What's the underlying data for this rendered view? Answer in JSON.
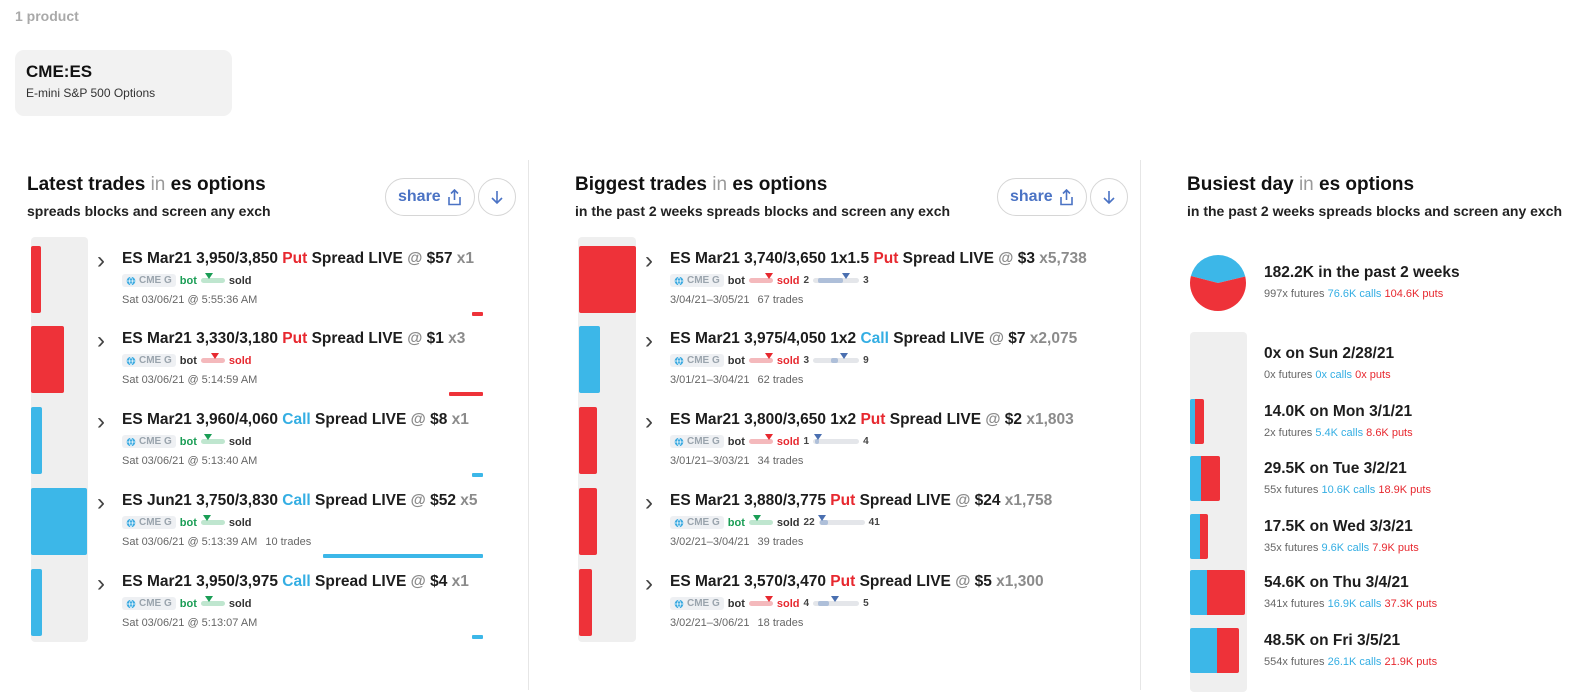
{
  "header": {
    "product_count": "1 product"
  },
  "product": {
    "code": "CME:ES",
    "name": "E-mini S&P 500 Options"
  },
  "colors": {
    "put": "#ee3239",
    "call": "#3cb7e8",
    "bot": "#1a9d55"
  },
  "latest": {
    "title": "Latest trades",
    "in": "in",
    "market": "es options",
    "subtitle": "spreads blocks and screen any exch",
    "share_label": "share",
    "rows": [
      {
        "pre": "ES Mar21 3,950/3,850 ",
        "type": "Put",
        "post": " Spread LIVE",
        "at": " @ ",
        "price": "$57",
        "x": " x1",
        "exch": "CME G",
        "bot": "bot",
        "sold": "sold",
        "time": "Sat 03/06/21 @ 5:55:36 AM",
        "extra": ""
      },
      {
        "pre": "ES Mar21 3,330/3,180 ",
        "type": "Put",
        "post": " Spread LIVE",
        "at": " @ ",
        "price": "$1",
        "x": " x3",
        "exch": "CME G",
        "bot": "bot",
        "sold": "sold",
        "time": "Sat 03/06/21 @ 5:14:59 AM",
        "extra": ""
      },
      {
        "pre": "ES Mar21 3,960/4,060 ",
        "type": "Call",
        "post": " Spread LIVE",
        "at": " @ ",
        "price": "$8",
        "x": " x1",
        "exch": "CME G",
        "bot": "bot",
        "sold": "sold",
        "time": "Sat 03/06/21 @ 5:13:40 AM",
        "extra": ""
      },
      {
        "pre": "ES Jun21 3,750/3,830 ",
        "type": "Call",
        "post": " Spread LIVE",
        "at": " @ ",
        "price": "$52",
        "x": " x5",
        "exch": "CME G",
        "bot": "bot",
        "sold": "sold",
        "time": "Sat 03/06/21 @ 5:13:39 AM",
        "extra": "10 trades"
      },
      {
        "pre": "ES Mar21 3,950/3,975 ",
        "type": "Call",
        "post": " Spread LIVE",
        "at": " @ ",
        "price": "$4",
        "x": " x1",
        "exch": "CME G",
        "bot": "bot",
        "sold": "sold",
        "time": "Sat 03/06/21 @ 5:13:07 AM",
        "extra": ""
      }
    ]
  },
  "biggest": {
    "title": "Biggest trades",
    "in": "in",
    "market": "es options",
    "subtitle": "in the past 2 weeks spreads blocks and screen any exch",
    "share_label": "share",
    "rows": [
      {
        "pre": "ES Mar21 3,740/3,650 1x1.5 ",
        "type": "Put",
        "post": " Spread LIVE",
        "at": " @ ",
        "price": "$3",
        "x": " x5,738",
        "exch": "CME G",
        "bot": "bot",
        "sold": "sold",
        "lo": "2",
        "hi": "3",
        "time": "3/04/21–3/05/21",
        "trades": "67 trades"
      },
      {
        "pre": "ES Mar21 3,975/4,050 1x2 ",
        "type": "Call",
        "post": " Spread LIVE",
        "at": " @ ",
        "price": "$7",
        "x": " x2,075",
        "exch": "CME G",
        "bot": "bot",
        "sold": "sold",
        "lo": "3",
        "hi": "9",
        "time": "3/01/21–3/04/21",
        "trades": "62 trades"
      },
      {
        "pre": "ES Mar21 3,800/3,650 1x2 ",
        "type": "Put",
        "post": " Spread LIVE",
        "at": " @ ",
        "price": "$2",
        "x": " x1,803",
        "exch": "CME G",
        "bot": "bot",
        "sold": "sold",
        "lo": "1",
        "hi": "4",
        "time": "3/01/21–3/03/21",
        "trades": "34 trades"
      },
      {
        "pre": "ES Mar21 3,880/3,775 ",
        "type": "Put",
        "post": " Spread LIVE",
        "at": " @ ",
        "price": "$24",
        "x": " x1,758",
        "exch": "CME G",
        "bot": "bot",
        "sold": "sold",
        "lo": "22",
        "hi": "41",
        "time": "3/02/21–3/04/21",
        "trades": "39 trades"
      },
      {
        "pre": "ES Mar21 3,570/3,470 ",
        "type": "Put",
        "post": " Spread LIVE",
        "at": " @ ",
        "price": "$5",
        "x": " x1,300",
        "exch": "CME G",
        "bot": "bot",
        "sold": "sold",
        "lo": "4",
        "hi": "5",
        "time": "3/02/21–3/06/21",
        "trades": "18 trades"
      }
    ]
  },
  "busiest": {
    "title": "Busiest day",
    "in": "in",
    "market": "es options",
    "subtitle": "in the past 2 weeks spreads blocks and screen any exch",
    "summary": {
      "title": "182.2K in the past 2 weeks",
      "futures": "997x futures",
      "calls": "76.6K calls",
      "puts": "104.6K puts",
      "calls_k": 76.6,
      "puts_k": 104.6
    },
    "days": [
      {
        "title": "0x on Sun 2/28/21",
        "futures": "0x futures",
        "calls": "0x calls",
        "puts": "0x puts",
        "calls_k": 0,
        "puts_k": 0
      },
      {
        "title": "14.0K on Mon 3/1/21",
        "futures": "2x futures",
        "calls": "5.4K calls",
        "puts": "8.6K puts",
        "calls_k": 5.4,
        "puts_k": 8.6
      },
      {
        "title": "29.5K on Tue 3/2/21",
        "futures": "55x futures",
        "calls": "10.6K calls",
        "puts": "18.9K puts",
        "calls_k": 10.6,
        "puts_k": 18.9
      },
      {
        "title": "17.5K on Wed 3/3/21",
        "futures": "35x futures",
        "calls": "9.6K calls",
        "puts": "7.9K puts",
        "calls_k": 9.6,
        "puts_k": 7.9
      },
      {
        "title": "54.6K on Thu 3/4/21",
        "futures": "341x futures",
        "calls": "16.9K calls",
        "puts": "37.3K puts",
        "calls_k": 16.9,
        "puts_k": 37.3
      },
      {
        "title": "48.5K on Fri 3/5/21",
        "futures": "554x futures",
        "calls": "26.1K calls",
        "puts": "21.9K puts",
        "calls_k": 26.1,
        "puts_k": 21.9
      }
    ]
  }
}
